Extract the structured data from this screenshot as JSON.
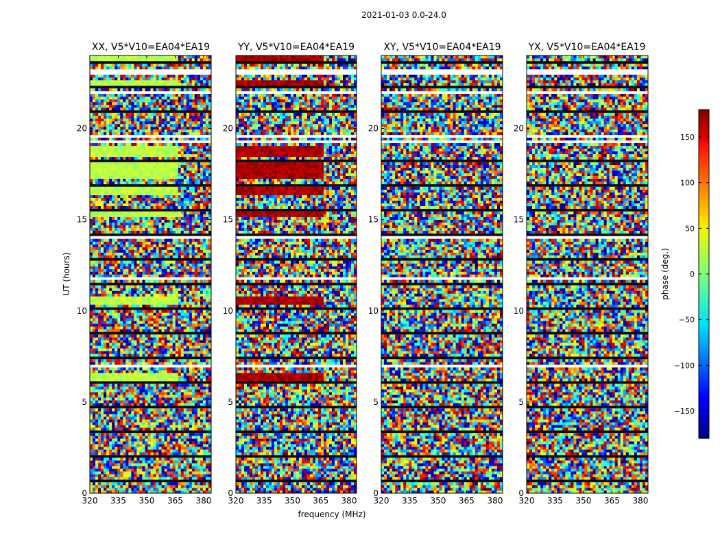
{
  "figure_title": "2021-01-03 0.0-24.0",
  "colorbar": {
    "label": "phase (deg.)",
    "ticks": [
      150,
      100,
      50,
      0,
      -50,
      -100,
      -150
    ],
    "tick_labels": [
      "150",
      "100",
      "50",
      "0",
      "−50",
      "−100",
      "−150"
    ],
    "vmin": -180,
    "vmax": 180,
    "colormap": "jet"
  },
  "chart_data": {
    "type": "heatmap",
    "title": "2021-01-03 0.0-24.0",
    "xlabel": "frequency (MHz)",
    "ylabel": "UT (hours)",
    "xlim": [
      320,
      384
    ],
    "ylim": [
      0,
      24
    ],
    "x_ticks": [
      320,
      335,
      350,
      365,
      380
    ],
    "y_ticks": [
      0,
      5,
      10,
      15,
      20
    ],
    "value_label": "phase (deg.)",
    "value_range": [
      -180,
      180
    ],
    "flagged_gaps_UT": [
      1.5,
      3.6,
      3.75,
      7.0,
      7.5,
      9.0,
      11.8,
      14.0,
      19.3,
      19.6,
      22.0,
      22.2,
      23.0,
      23.2
    ],
    "panels": [
      {
        "title": "XX, V5*V10=EA04*EA19",
        "coherent_phase_deg": 20,
        "coherent_bands_UT": [
          [
            23.7,
            24.0
          ],
          [
            22.3,
            22.6
          ],
          [
            18.5,
            19.1
          ],
          [
            17.3,
            18.1
          ],
          [
            16.4,
            16.8
          ],
          [
            15.1,
            15.5
          ],
          [
            10.4,
            10.8
          ],
          [
            6.2,
            6.6
          ]
        ]
      },
      {
        "title": "YY, V5*V10=EA04*EA19",
        "coherent_phase_deg": 165,
        "coherent_bands_UT": [
          [
            23.7,
            24.0
          ],
          [
            22.3,
            22.6
          ],
          [
            18.5,
            19.1
          ],
          [
            17.3,
            18.1
          ],
          [
            16.4,
            16.8
          ],
          [
            15.1,
            15.5
          ],
          [
            10.4,
            10.8
          ],
          [
            6.2,
            6.6
          ]
        ]
      },
      {
        "title": "XY, V5*V10=EA04*EA19",
        "coherent_phase_deg": null,
        "coherent_bands_UT": []
      },
      {
        "title": "YX, V5*V10=EA04*EA19",
        "coherent_phase_deg": null,
        "coherent_bands_UT": []
      }
    ]
  }
}
